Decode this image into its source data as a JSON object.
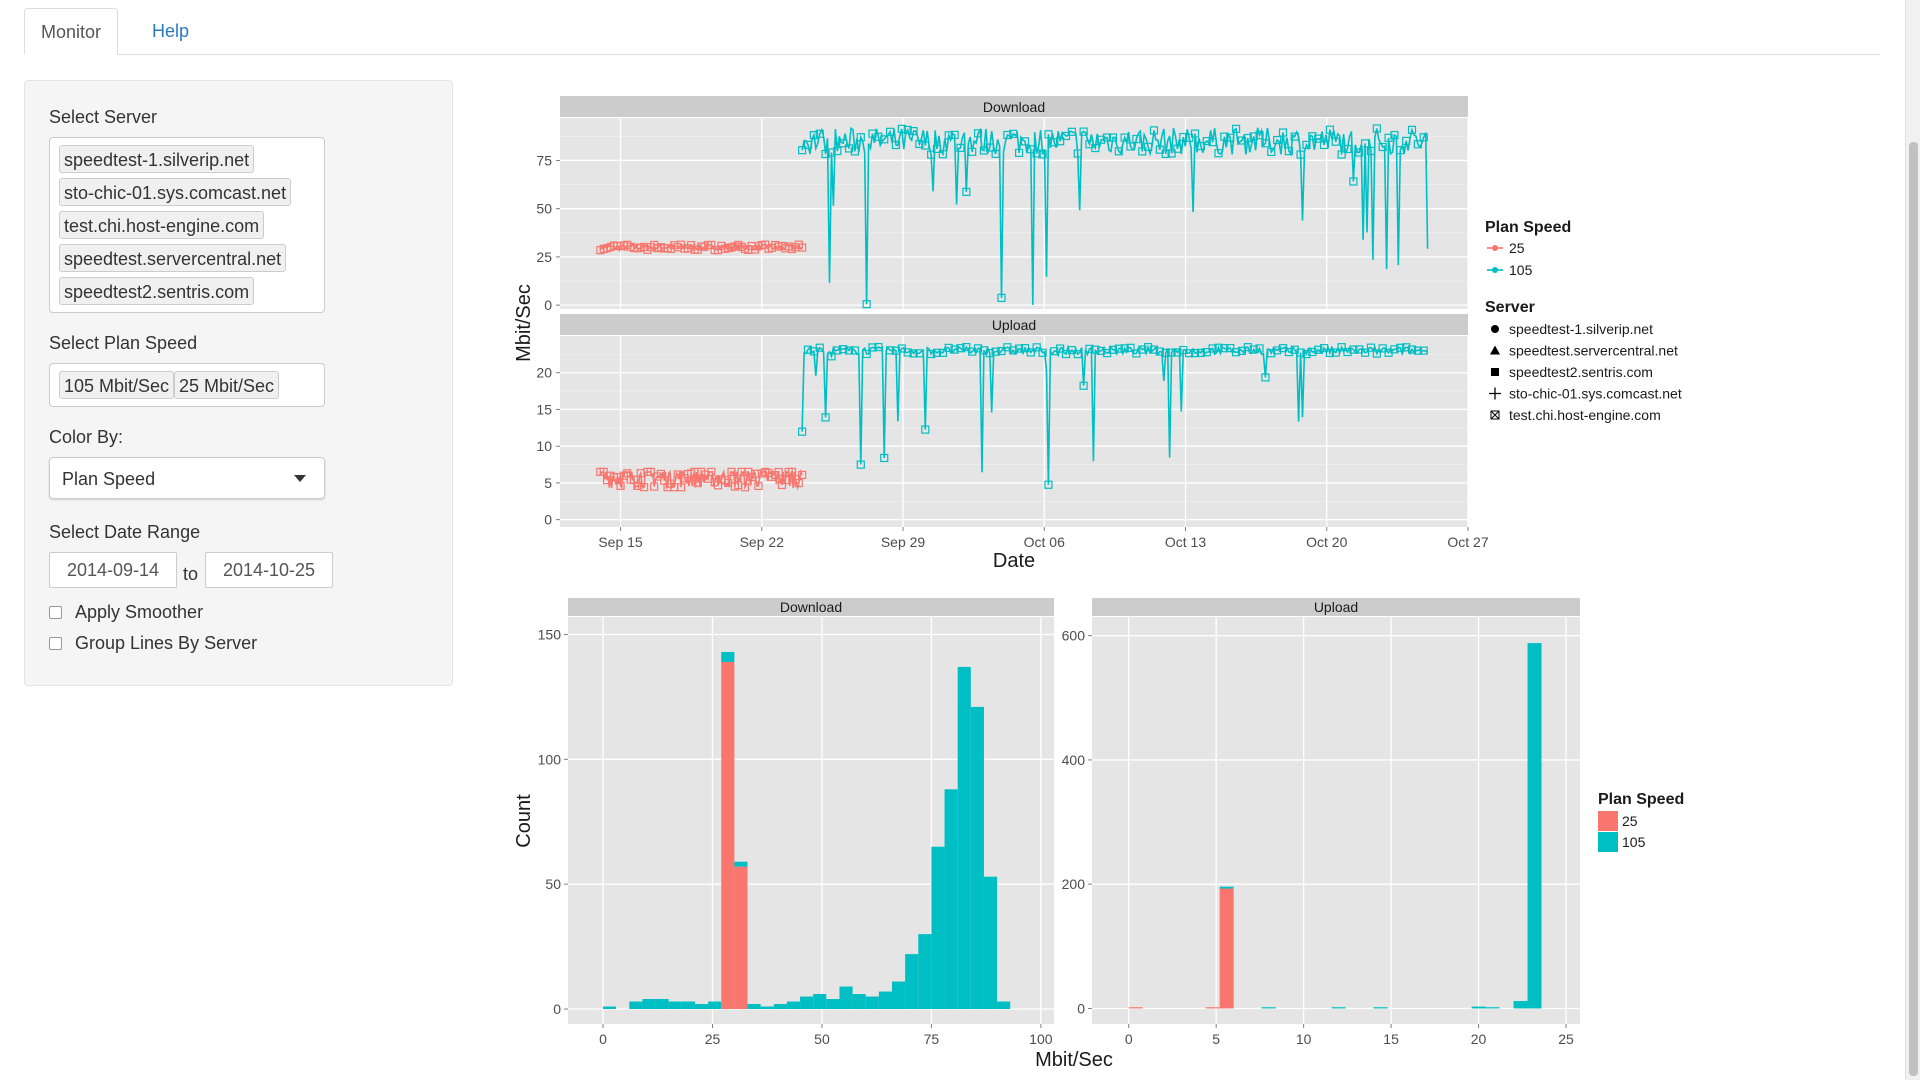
{
  "tabs": [
    {
      "label": "Monitor"
    },
    {
      "label": "Help"
    }
  ],
  "sidebar": {
    "server_label": "Select Server",
    "servers": [
      "speedtest-1.silverip.net",
      "sto-chic-01.sys.comcast.net",
      "test.chi.host-engine.com",
      "speedtest.servercentral.net",
      "speedtest2.sentris.com"
    ],
    "plan_label": "Select Plan Speed",
    "plans": [
      "105 Mbit/Sec",
      "25 Mbit/Sec"
    ],
    "color_label": "Color By:",
    "color_value": "Plan Speed",
    "date_label": "Select Date Range",
    "date_start": "2014-09-14",
    "date_to": "to",
    "date_end": "2014-10-25",
    "smoother_label": "Apply Smoother",
    "group_label": "Group Lines By Server"
  },
  "colors": {
    "plan25": "#F8766D",
    "plan105": "#00BFC4",
    "panel_bg": "#E5E5E5",
    "strip_bg": "#CCCCCC"
  },
  "chart_data": [
    {
      "type": "line",
      "facets": [
        "Download",
        "Upload"
      ],
      "xlabel": "Date",
      "ylabel": "Mbit/Sec",
      "x_ticks": [
        "Sep 15",
        "Sep 22",
        "Sep 29",
        "Oct 06",
        "Oct 13",
        "Oct 20",
        "Oct 27"
      ],
      "xlim": [
        "2014-09-12",
        "2014-10-27"
      ],
      "download_y_ticks": [
        0,
        25,
        50,
        75
      ],
      "download_ylim": [
        -2,
        97
      ],
      "upload_y_ticks": [
        0,
        5,
        10,
        15,
        20
      ],
      "upload_ylim": [
        -1,
        25
      ],
      "legend_plan_title": "Plan Speed",
      "legend_plan": [
        {
          "name": "25",
          "color": "#F8766D"
        },
        {
          "name": "105",
          "color": "#00BFC4"
        }
      ],
      "legend_server_title": "Server",
      "legend_server": [
        {
          "name": "speedtest-1.silverip.net",
          "shape": "circle"
        },
        {
          "name": "speedtest.servercentral.net",
          "shape": "triangle"
        },
        {
          "name": "speedtest2.sentris.com",
          "shape": "square"
        },
        {
          "name": "sto-chic-01.sys.comcast.net",
          "shape": "plus"
        },
        {
          "name": "test.chi.host-engine.com",
          "shape": "boxed-x"
        }
      ],
      "series": [
        {
          "name": "25",
          "facet": "Download",
          "x": [
            "2014-09-14",
            "2014-09-24"
          ],
          "y_range": [
            28,
            32
          ],
          "typical": 30
        },
        {
          "name": "105",
          "facet": "Download",
          "x": [
            "2014-09-24",
            "2014-10-25"
          ],
          "y_range": [
            0,
            93
          ],
          "typical": 85
        },
        {
          "name": "25",
          "facet": "Upload",
          "x": [
            "2014-09-14",
            "2014-09-24"
          ],
          "y_range": [
            0,
            6.5
          ],
          "typical": 5.8
        },
        {
          "name": "105",
          "facet": "Upload",
          "x": [
            "2014-09-24",
            "2014-10-25"
          ],
          "y_range": [
            4,
            23.5
          ],
          "typical": 23
        }
      ]
    },
    {
      "type": "bar",
      "stacked": true,
      "facets": [
        "Download",
        "Upload"
      ],
      "xlabel": "Mbit/Sec",
      "ylabel": "Count",
      "legend_title": "Plan Speed",
      "legend": [
        {
          "name": "25",
          "color": "#F8766D"
        },
        {
          "name": "105",
          "color": "#00BFC4"
        }
      ],
      "download": {
        "x_ticks": [
          0,
          25,
          50,
          75,
          100
        ],
        "xlim": [
          -8,
          103
        ],
        "y_ticks": [
          0,
          50,
          100,
          150
        ],
        "ylim": [
          -6,
          157
        ],
        "bin_width": 3,
        "bins": [
          {
            "x": 1.5,
            "v25": 0,
            "v105": 1
          },
          {
            "x": 7.5,
            "v25": 0,
            "v105": 3
          },
          {
            "x": 10.5,
            "v25": 0,
            "v105": 4
          },
          {
            "x": 13.5,
            "v25": 0,
            "v105": 4
          },
          {
            "x": 16.5,
            "v25": 0,
            "v105": 3
          },
          {
            "x": 19.5,
            "v25": 0,
            "v105": 3
          },
          {
            "x": 22.5,
            "v25": 0,
            "v105": 2
          },
          {
            "x": 25.5,
            "v25": 0,
            "v105": 3
          },
          {
            "x": 28.5,
            "v25": 139,
            "v105": 4
          },
          {
            "x": 31.5,
            "v25": 57,
            "v105": 2
          },
          {
            "x": 34.5,
            "v25": 0,
            "v105": 2
          },
          {
            "x": 37.5,
            "v25": 0,
            "v105": 1
          },
          {
            "x": 40.5,
            "v25": 0,
            "v105": 2
          },
          {
            "x": 43.5,
            "v25": 0,
            "v105": 3
          },
          {
            "x": 46.5,
            "v25": 0,
            "v105": 5
          },
          {
            "x": 49.5,
            "v25": 0,
            "v105": 6
          },
          {
            "x": 52.5,
            "v25": 0,
            "v105": 4
          },
          {
            "x": 55.5,
            "v25": 0,
            "v105": 9
          },
          {
            "x": 58.5,
            "v25": 0,
            "v105": 6
          },
          {
            "x": 61.5,
            "v25": 0,
            "v105": 5
          },
          {
            "x": 64.5,
            "v25": 0,
            "v105": 7
          },
          {
            "x": 67.5,
            "v25": 0,
            "v105": 11
          },
          {
            "x": 70.5,
            "v25": 0,
            "v105": 22
          },
          {
            "x": 73.5,
            "v25": 0,
            "v105": 30
          },
          {
            "x": 76.5,
            "v25": 0,
            "v105": 65
          },
          {
            "x": 79.5,
            "v25": 0,
            "v105": 88
          },
          {
            "x": 82.5,
            "v25": 0,
            "v105": 137
          },
          {
            "x": 85.5,
            "v25": 0,
            "v105": 121
          },
          {
            "x": 88.5,
            "v25": 0,
            "v105": 53
          },
          {
            "x": 91.5,
            "v25": 0,
            "v105": 3
          }
        ]
      },
      "upload": {
        "x_ticks": [
          0,
          5,
          10,
          15,
          20,
          25
        ],
        "xlim": [
          -2.1,
          25.8
        ],
        "y_ticks": [
          0,
          200,
          400,
          600
        ],
        "ylim": [
          -25,
          630
        ],
        "bin_width": 0.8,
        "bins": [
          {
            "x": 0.4,
            "v25": 2,
            "v105": 0
          },
          {
            "x": 4.8,
            "v25": 2,
            "v105": 0
          },
          {
            "x": 5.6,
            "v25": 193,
            "v105": 3
          },
          {
            "x": 8.0,
            "v25": 0,
            "v105": 2
          },
          {
            "x": 12.0,
            "v25": 0,
            "v105": 2
          },
          {
            "x": 14.4,
            "v25": 0,
            "v105": 2
          },
          {
            "x": 20.0,
            "v25": 0,
            "v105": 3
          },
          {
            "x": 20.8,
            "v25": 0,
            "v105": 2
          },
          {
            "x": 22.4,
            "v25": 0,
            "v105": 12
          },
          {
            "x": 23.2,
            "v25": 0,
            "v105": 588
          }
        ]
      }
    }
  ]
}
